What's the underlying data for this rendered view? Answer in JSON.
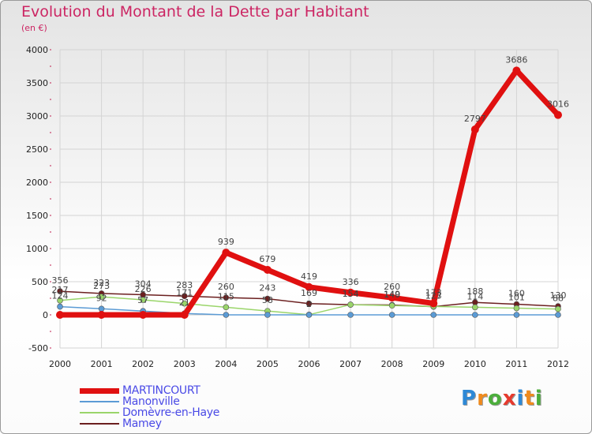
{
  "title": "Evolution du Montant de la Dette par Habitant",
  "subtitle": "(en €)",
  "logo": {
    "letters": [
      "P",
      "r",
      "o",
      "x",
      "i",
      "t",
      "i"
    ],
    "colors": [
      "#2e89d6",
      "#f08a1c",
      "#4cae3c",
      "#e63a2e",
      "#2e89d6",
      "#f08a1c",
      "#4cae3c"
    ]
  },
  "chart_data": {
    "type": "line",
    "title": "Evolution du Montant de la Dette par Habitant",
    "ylabel": "(en €)",
    "x": [
      "2000",
      "2001",
      "2002",
      "2003",
      "2004",
      "2005",
      "2006",
      "2007",
      "2008",
      "2009",
      "2010",
      "2011",
      "2012"
    ],
    "ylim": [
      -500,
      4000
    ],
    "yticks": [
      -500,
      0,
      500,
      1000,
      1500,
      2000,
      2500,
      3000,
      3500,
      4000
    ],
    "grid": true,
    "legend_position": "bottom-left",
    "series": [
      {
        "name": "MARTINCOURT",
        "color": "#e01010",
        "values": [
          0,
          0,
          0,
          0,
          939,
          679,
          419,
          336,
          260,
          173,
          2797,
          3686,
          3016
        ],
        "labels": [
          "",
          "",
          "",
          "",
          "939",
          "679",
          "419",
          "336",
          "260",
          "173",
          "2797",
          "3686",
          "3016"
        ]
      },
      {
        "name": "Manonville",
        "color": "#5b9bd5",
        "values": [
          124,
          92,
          57,
          21,
          0,
          0,
          0,
          0,
          0,
          0,
          0,
          0,
          0
        ],
        "labels": [
          "124",
          "92",
          "57",
          "21",
          "",
          "",
          "",
          "",
          "",
          "",
          "",
          "",
          ""
        ]
      },
      {
        "name": "Domèvre-en-Haye",
        "color": "#9ad56a",
        "values": [
          217,
          273,
          226,
          171,
          115,
          58,
          2,
          154,
          140,
          127,
          114,
          101,
          88
        ],
        "labels": [
          "217",
          "273",
          "226",
          "171",
          "115",
          "58",
          "2",
          "154",
          "140",
          "127",
          "114",
          "101",
          "88"
        ]
      },
      {
        "name": "Mamey",
        "color": "#6b1f1f",
        "values": [
          356,
          323,
          304,
          283,
          260,
          243,
          169,
          154,
          149,
          123,
          188,
          160,
          130
        ],
        "labels": [
          "356",
          "323",
          "304",
          "283",
          "260",
          "243",
          "169",
          "154",
          "149",
          "123",
          "188",
          "160",
          "130"
        ]
      }
    ]
  }
}
